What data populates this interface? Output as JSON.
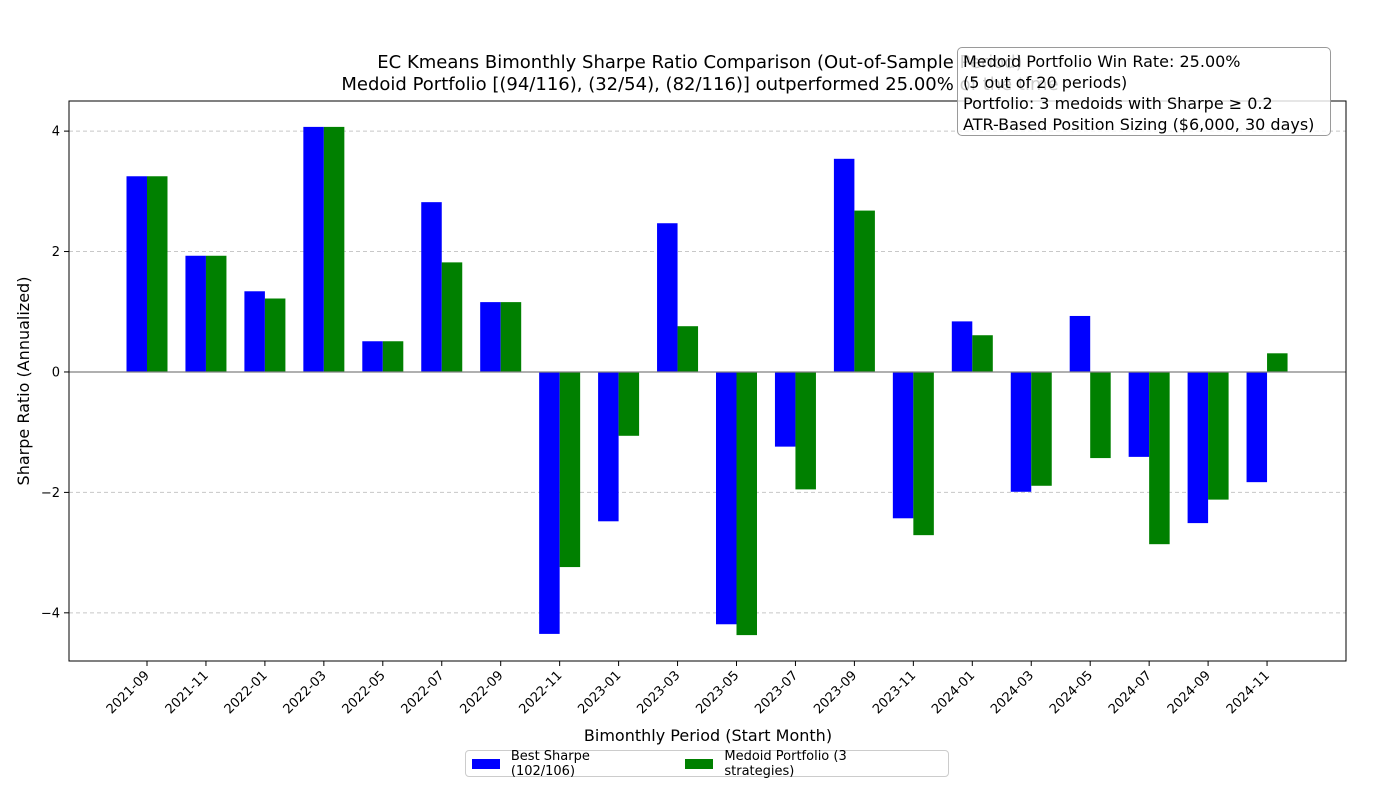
{
  "chart_data": {
    "type": "bar",
    "title": "EC Kmeans Bimonthly Sharpe Ratio Comparison (Out-of-Sample Period)",
    "subtitle": "Medoid Portfolio [(94/116), (32/54), (82/116)] outperformed 25.00% of the time",
    "xlabel": "Bimonthly Period (Start Month)",
    "ylabel": "Sharpe Ratio (Annualized)",
    "ylim": [
      -4.8,
      4.5
    ],
    "yticks": [
      4,
      2,
      0,
      -2,
      -4
    ],
    "ytick_labels": [
      "4",
      "2",
      "0",
      "−2",
      "−4"
    ],
    "grid": "horizontal dashed",
    "categories": [
      "2021-09",
      "2021-11",
      "2022-01",
      "2022-03",
      "2022-05",
      "2022-07",
      "2022-09",
      "2022-11",
      "2023-01",
      "2023-03",
      "2023-05",
      "2023-07",
      "2023-09",
      "2023-11",
      "2024-01",
      "2024-03",
      "2024-05",
      "2024-07",
      "2024-09",
      "2024-11"
    ],
    "series": [
      {
        "name": "Best Sharpe (102/106)",
        "color": "#0000ff",
        "values": [
          3.25,
          1.93,
          1.34,
          4.07,
          0.51,
          2.82,
          1.16,
          -4.35,
          -2.48,
          2.47,
          -4.19,
          -1.24,
          3.54,
          -2.43,
          0.84,
          -1.99,
          0.93,
          -1.41,
          -2.51,
          -1.83
        ]
      },
      {
        "name": "Medoid Portfolio (3 strategies)",
        "color": "#008000",
        "values": [
          3.25,
          1.93,
          1.22,
          4.07,
          0.51,
          1.82,
          1.16,
          -3.24,
          -1.06,
          0.76,
          -4.37,
          -1.95,
          2.68,
          -2.71,
          0.61,
          -1.89,
          -1.43,
          -2.86,
          -2.12,
          0.31
        ]
      }
    ],
    "legend_position": "bottom-center",
    "info_box": [
      "Medoid Portfolio Win Rate: 25.00%",
      "(5 out of 20 periods)",
      "Portfolio: 3 medoids with Sharpe ≥ 0.2",
      "ATR-Based Position Sizing ($6,000, 30 days)"
    ]
  }
}
